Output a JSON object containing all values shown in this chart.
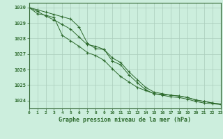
{
  "xlabel": "Graphe pression niveau de la mer (hPa)",
  "bg_color": "#cceedd",
  "grid_color": "#aaccbb",
  "line_color": "#2d6a2d",
  "text_color": "#2d6a2d",
  "border_color": "#336633",
  "x_hours": [
    0,
    1,
    2,
    3,
    4,
    5,
    6,
    7,
    8,
    9,
    10,
    11,
    12,
    13,
    14,
    15,
    16,
    17,
    18,
    19,
    20,
    21,
    22,
    23
  ],
  "line1": [
    1030.0,
    1029.85,
    1029.7,
    1029.55,
    1029.4,
    1029.25,
    1028.75,
    1027.7,
    1027.35,
    1027.3,
    1026.75,
    1026.45,
    1025.85,
    1025.35,
    1024.85,
    1024.55,
    1024.45,
    1024.35,
    1024.3,
    1024.2,
    1024.05,
    1023.95,
    1023.85,
    1023.78
  ],
  "line2": [
    1030.0,
    1029.75,
    1029.45,
    1029.2,
    1028.9,
    1028.6,
    1028.1,
    1027.6,
    1027.5,
    1027.3,
    1026.55,
    1026.3,
    1025.65,
    1025.15,
    1024.7,
    1024.45,
    1024.35,
    1024.25,
    1024.2,
    1024.1,
    1023.95,
    1023.85,
    1023.8,
    1023.75
  ],
  "line3": [
    1030.0,
    1029.6,
    1029.5,
    1029.35,
    1028.2,
    1027.85,
    1027.5,
    1027.1,
    1026.9,
    1026.6,
    1026.05,
    1025.55,
    1025.2,
    1024.85,
    1024.65,
    1024.45,
    1024.4,
    1024.35,
    1024.3,
    1024.2,
    1024.05,
    1023.95,
    1023.85,
    1023.78
  ],
  "ylim_min": 1023.5,
  "ylim_max": 1030.3,
  "yticks": [
    1024,
    1025,
    1026,
    1027,
    1028,
    1029,
    1030
  ]
}
